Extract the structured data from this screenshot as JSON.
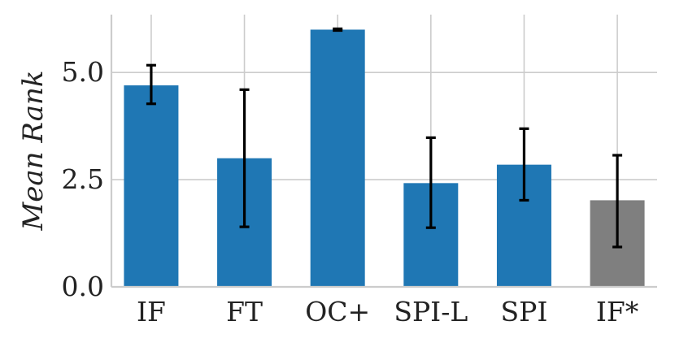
{
  "chart_data": {
    "type": "bar",
    "categories": [
      "IF",
      "FT",
      "OC+",
      "SPI-L",
      "SPI",
      "IF*"
    ],
    "values": [
      4.7,
      3.0,
      6.0,
      2.42,
      2.85,
      2.02
    ],
    "error_low": [
      4.27,
      1.4,
      5.98,
      1.38,
      2.02,
      0.93
    ],
    "error_high": [
      5.17,
      4.6,
      6.02,
      3.48,
      3.69,
      3.07
    ],
    "colors": [
      "#1f77b4",
      "#1f77b4",
      "#1f77b4",
      "#1f77b4",
      "#1f77b4",
      "#7f7f7f"
    ],
    "ylabel": "Mean Rank",
    "ylim": [
      0,
      6.35
    ],
    "yticks": [
      0.0,
      2.5,
      5.0
    ],
    "ytick_labels": [
      "0.0",
      "2.5",
      "5.0"
    ],
    "grid": true,
    "legend": "none"
  }
}
